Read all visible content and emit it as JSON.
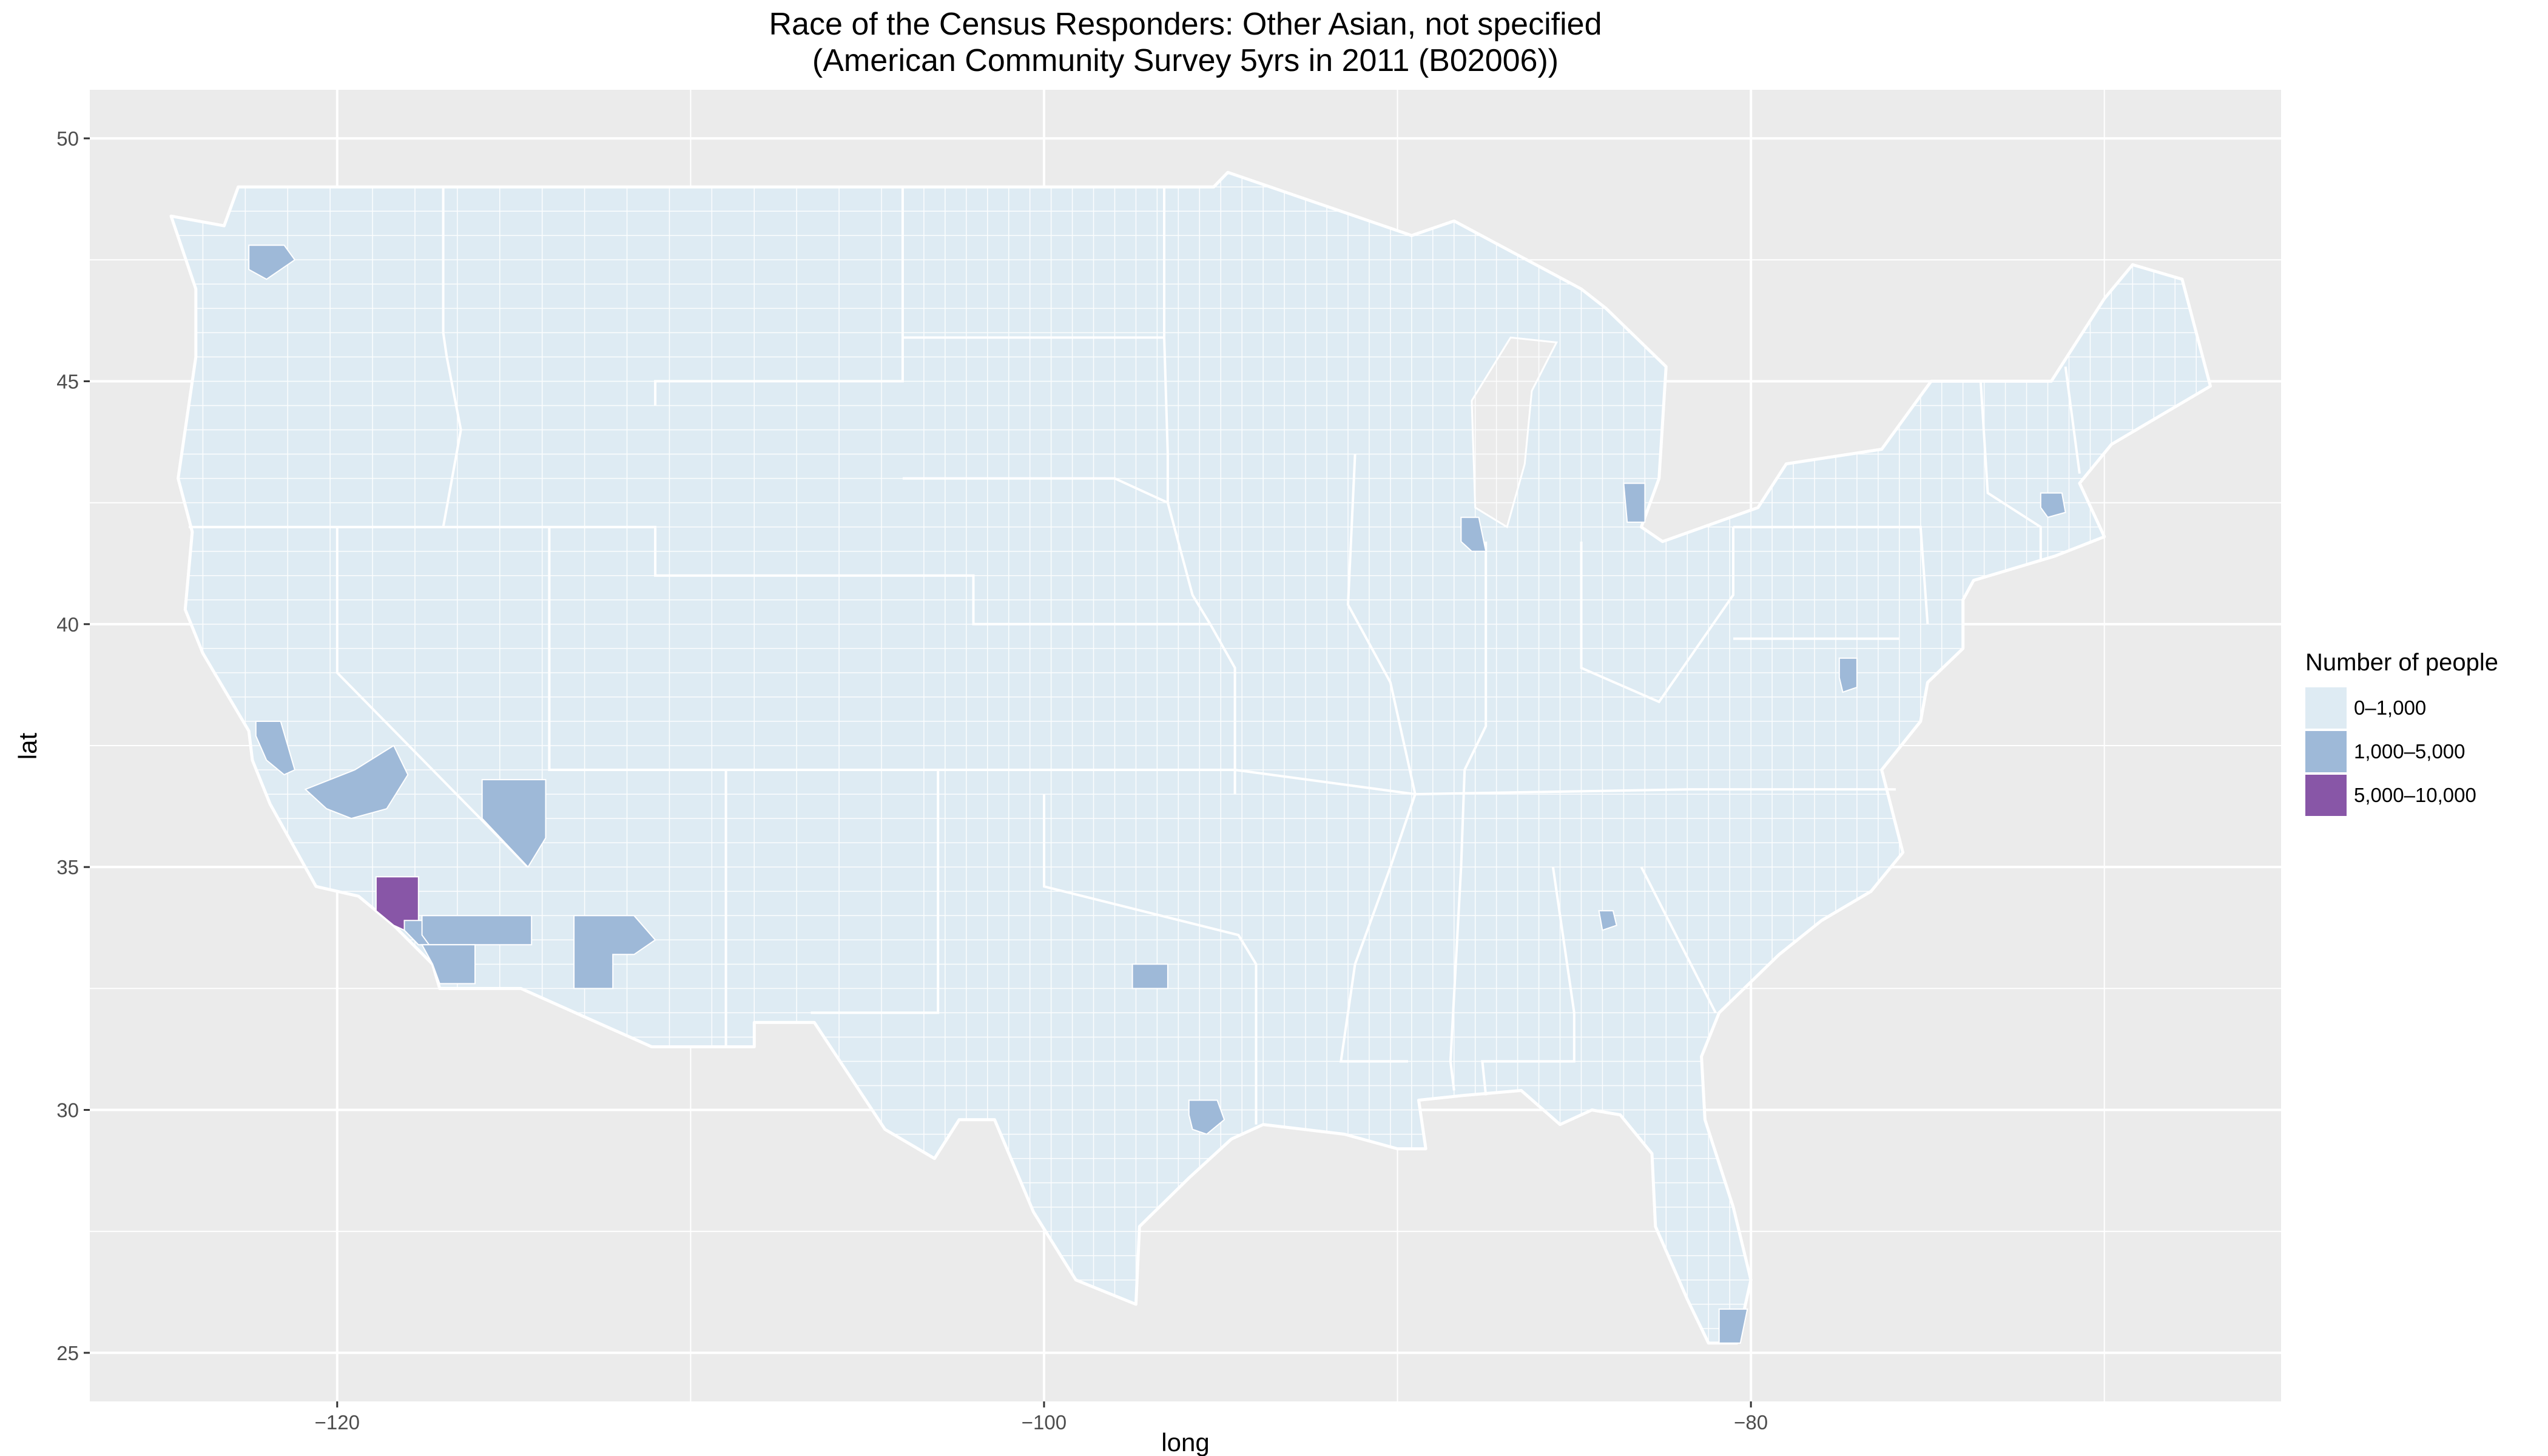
{
  "title": {
    "line1": "Race of the Census Responders: Other Asian, not specified",
    "line2": "(American Community Survey 5yrs in 2011 (B02006))"
  },
  "chart_data": {
    "type": "choropleth",
    "projection": "longitude/latitude (unprojected)",
    "xlabel": "long",
    "ylabel": "lat",
    "xlim": [
      -127,
      -65
    ],
    "ylim": [
      24,
      51
    ],
    "x_ticks": [
      -120,
      -100,
      -80
    ],
    "x_tick_labels": [
      "−120",
      "−100",
      "−80"
    ],
    "y_ticks": [
      25,
      30,
      35,
      40,
      45,
      50
    ],
    "y_tick_labels": [
      "25",
      "30",
      "35",
      "40",
      "45",
      "50"
    ],
    "grid": true,
    "background": "#ebebeb",
    "missing_color": "#e6e6e6",
    "legend": {
      "title": "Number of people",
      "placement": "right",
      "items": [
        {
          "label": "0–1,000",
          "color": "#deebf3"
        },
        {
          "label": "1,000–5,000",
          "color": "#9eb9d8"
        },
        {
          "label": "5,000–10,000",
          "color": "#8856a7"
        }
      ]
    },
    "highlighted_counties": [
      {
        "area": "King County, WA",
        "class": "1,000–5,000"
      },
      {
        "area": "Alameda / Santa Clara, CA",
        "class": "1,000–5,000"
      },
      {
        "area": "Fresno / Tulare, CA",
        "class": "1,000–5,000"
      },
      {
        "area": "Los Angeles County, CA",
        "class": "5,000–10,000"
      },
      {
        "area": "Orange County, CA",
        "class": "1,000–5,000"
      },
      {
        "area": "Riverside County, CA",
        "class": "1,000–5,000"
      },
      {
        "area": "San Diego County, CA",
        "class": "1,000–5,000"
      },
      {
        "area": "Clark County, NV",
        "class": "1,000–5,000"
      },
      {
        "area": "Maricopa County, AZ",
        "class": "1,000–5,000"
      },
      {
        "area": "Dallas / Tarrant, TX",
        "class": "1,000–5,000"
      },
      {
        "area": "Harris County, TX",
        "class": "1,000–5,000"
      },
      {
        "area": "Cook County, IL",
        "class": "1,000–5,000"
      },
      {
        "area": "Wayne / Oakland, MI",
        "class": "1,000–5,000"
      },
      {
        "area": "Middlesex, MA",
        "class": "1,000–5,000"
      },
      {
        "area": "Fairfax / Montgomery, VA-MD",
        "class": "1,000–5,000"
      },
      {
        "area": "Gwinnett, GA",
        "class": "1,000–5,000"
      },
      {
        "area": "Miami-Dade, FL",
        "class": "1,000–5,000"
      }
    ]
  }
}
